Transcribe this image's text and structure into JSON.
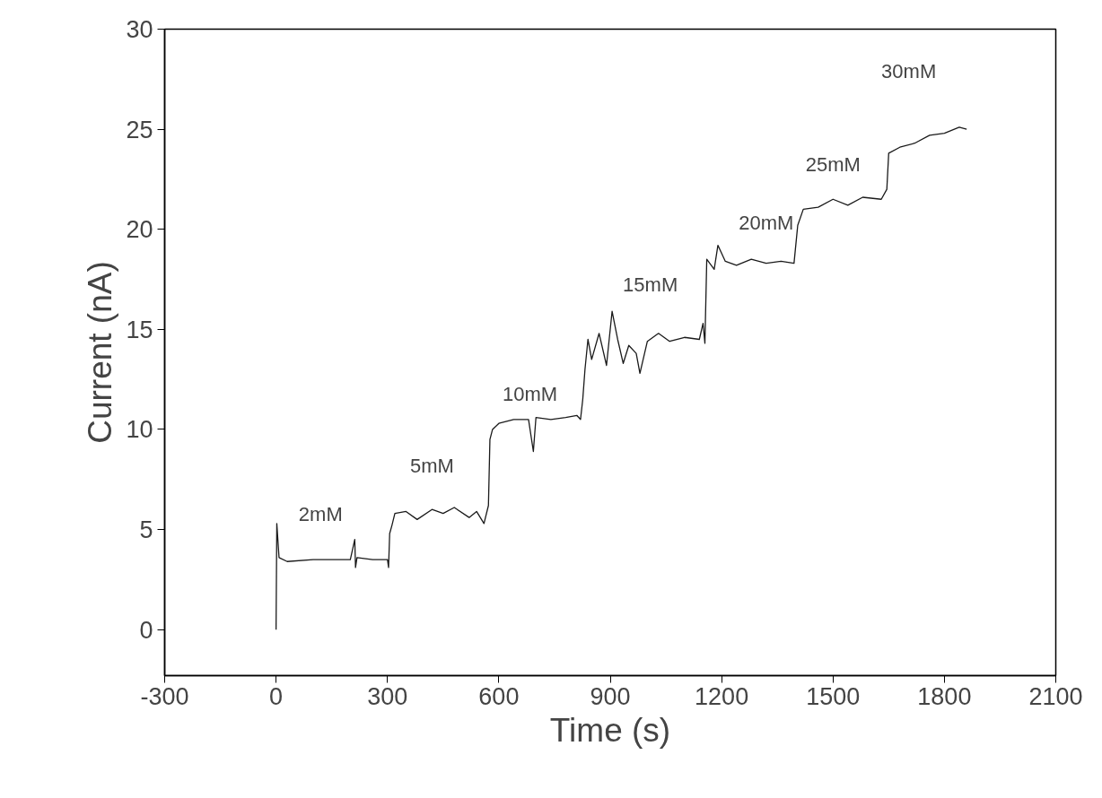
{
  "chart_data": {
    "type": "line",
    "xlabel": "Time (s)",
    "ylabel": "Current (nA)",
    "xlim": [
      -300,
      2100
    ],
    "ylim": [
      -2.3,
      30
    ],
    "xticks": [
      -300,
      0,
      300,
      600,
      900,
      1200,
      1500,
      1800,
      2100
    ],
    "yticks": [
      0,
      5,
      10,
      15,
      20,
      25,
      30
    ],
    "grid": false,
    "line_style": "solid",
    "marker": "none",
    "series": [
      {
        "color": "#1a1a1a",
        "x": [
          0,
          2,
          8,
          30,
          100,
          200,
          212,
          214,
          218,
          260,
          300,
          303,
          306,
          312,
          320,
          350,
          380,
          420,
          450,
          480,
          520,
          540,
          560,
          572,
          576,
          583,
          600,
          640,
          680,
          693,
          700,
          740,
          780,
          810,
          820,
          826,
          832,
          840,
          850,
          870,
          890,
          905,
          920,
          935,
          950,
          970,
          980,
          1000,
          1030,
          1060,
          1100,
          1140,
          1150,
          1155,
          1160,
          1180,
          1190,
          1210,
          1240,
          1280,
          1320,
          1360,
          1395,
          1405,
          1420,
          1460,
          1500,
          1540,
          1580,
          1630,
          1645,
          1650,
          1680,
          1720,
          1760,
          1800,
          1840,
          1860
        ],
        "values": [
          0,
          5.3,
          3.6,
          3.4,
          3.5,
          3.5,
          4.5,
          3.1,
          3.6,
          3.5,
          3.5,
          3.1,
          4.8,
          5.2,
          5.8,
          5.9,
          5.5,
          6.0,
          5.8,
          6.1,
          5.6,
          5.9,
          5.3,
          6.2,
          9.5,
          10.0,
          10.3,
          10.5,
          10.5,
          8.9,
          10.6,
          10.5,
          10.6,
          10.7,
          10.5,
          11.5,
          13.0,
          14.5,
          13.5,
          14.8,
          13.2,
          15.9,
          14.5,
          13.3,
          14.2,
          13.8,
          12.8,
          14.4,
          14.8,
          14.4,
          14.6,
          14.5,
          15.3,
          14.3,
          18.5,
          18.0,
          19.2,
          18.4,
          18.2,
          18.5,
          18.3,
          18.4,
          18.3,
          20.2,
          21.0,
          21.1,
          21.5,
          21.2,
          21.6,
          21.5,
          22.0,
          23.8,
          24.1,
          24.3,
          24.7,
          24.8,
          25.1,
          25.0
        ]
      }
    ],
    "annotations": [
      "2mM",
      "5mM",
      "10mM",
      "15mM",
      "20mM",
      "25mM",
      "30mM"
    ]
  }
}
